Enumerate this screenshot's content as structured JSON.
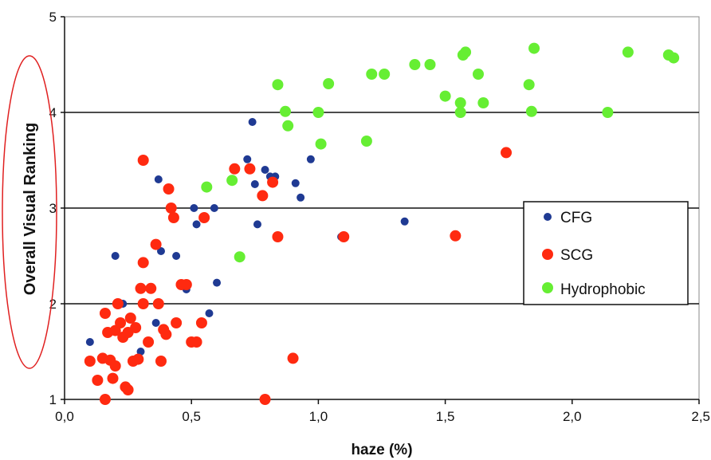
{
  "chart_data": {
    "type": "scatter",
    "title": "",
    "xlabel": "haze (%)",
    "ylabel": "Overall Visual Ranking",
    "xlim": [
      0,
      2.5
    ],
    "ylim": [
      1,
      5
    ],
    "x_ticks": [
      "0,0",
      "0,5",
      "1,0",
      "1,5",
      "2,0",
      "2,5"
    ],
    "y_ticks": [
      "1",
      "2",
      "3",
      "4",
      "5"
    ],
    "grid": "horizontal at 2, 3, 4",
    "legend_position": "right",
    "series": [
      {
        "name": "CFG",
        "color": "#1f3a93",
        "points": [
          [
            0.1,
            1.6
          ],
          [
            0.2,
            2.5
          ],
          [
            0.23,
            2.0
          ],
          [
            0.3,
            1.5
          ],
          [
            0.36,
            1.8
          ],
          [
            0.37,
            3.3
          ],
          [
            0.38,
            2.55
          ],
          [
            0.44,
            2.5
          ],
          [
            0.48,
            2.15
          ],
          [
            0.51,
            3.0
          ],
          [
            0.52,
            2.83
          ],
          [
            0.57,
            1.9
          ],
          [
            0.59,
            3.0
          ],
          [
            0.6,
            2.22
          ],
          [
            0.72,
            3.51
          ],
          [
            0.74,
            3.9
          ],
          [
            0.75,
            3.25
          ],
          [
            0.76,
            2.83
          ],
          [
            0.79,
            3.4
          ],
          [
            0.81,
            3.33
          ],
          [
            0.83,
            3.33
          ],
          [
            0.91,
            3.26
          ],
          [
            0.93,
            3.11
          ],
          [
            0.97,
            3.51
          ],
          [
            1.09,
            2.7
          ],
          [
            1.34,
            2.86
          ]
        ]
      },
      {
        "name": "SCG",
        "color": "#ff2a10",
        "points": [
          [
            0.1,
            1.4
          ],
          [
            0.13,
            1.2
          ],
          [
            0.15,
            1.43
          ],
          [
            0.16,
            1.0
          ],
          [
            0.16,
            1.9
          ],
          [
            0.17,
            1.7
          ],
          [
            0.18,
            1.41
          ],
          [
            0.19,
            1.22
          ],
          [
            0.2,
            1.35
          ],
          [
            0.2,
            1.72
          ],
          [
            0.21,
            2.0
          ],
          [
            0.22,
            1.8
          ],
          [
            0.23,
            1.65
          ],
          [
            0.24,
            1.13
          ],
          [
            0.25,
            1.1
          ],
          [
            0.25,
            1.7
          ],
          [
            0.26,
            1.85
          ],
          [
            0.27,
            1.4
          ],
          [
            0.28,
            1.75
          ],
          [
            0.29,
            1.42
          ],
          [
            0.3,
            2.16
          ],
          [
            0.31,
            2.43
          ],
          [
            0.31,
            3.5
          ],
          [
            0.31,
            2.0
          ],
          [
            0.33,
            1.6
          ],
          [
            0.34,
            2.16
          ],
          [
            0.36,
            2.62
          ],
          [
            0.37,
            2.0
          ],
          [
            0.38,
            1.4
          ],
          [
            0.39,
            1.73
          ],
          [
            0.4,
            1.68
          ],
          [
            0.41,
            3.2
          ],
          [
            0.42,
            3.0
          ],
          [
            0.43,
            2.9
          ],
          [
            0.44,
            1.8
          ],
          [
            0.46,
            2.2
          ],
          [
            0.48,
            2.2
          ],
          [
            0.5,
            1.6
          ],
          [
            0.52,
            1.6
          ],
          [
            0.54,
            1.8
          ],
          [
            0.55,
            2.9
          ],
          [
            0.67,
            3.41
          ],
          [
            0.73,
            3.41
          ],
          [
            0.78,
            3.13
          ],
          [
            0.79,
            1.0
          ],
          [
            0.82,
            3.27
          ],
          [
            0.84,
            2.7
          ],
          [
            0.9,
            1.43
          ],
          [
            1.1,
            2.7
          ],
          [
            1.54,
            2.71
          ],
          [
            1.74,
            3.58
          ]
        ]
      },
      {
        "name": "Hydrophobic",
        "color": "#66ee33",
        "points": [
          [
            0.56,
            3.22
          ],
          [
            0.66,
            3.29
          ],
          [
            0.69,
            2.49
          ],
          [
            0.84,
            4.29
          ],
          [
            0.87,
            4.01
          ],
          [
            0.88,
            3.86
          ],
          [
            1.0,
            4.0
          ],
          [
            1.01,
            3.67
          ],
          [
            1.04,
            4.3
          ],
          [
            1.19,
            3.7
          ],
          [
            1.21,
            4.4
          ],
          [
            1.26,
            4.4
          ],
          [
            1.38,
            4.5
          ],
          [
            1.44,
            4.5
          ],
          [
            1.5,
            4.17
          ],
          [
            1.56,
            4.0
          ],
          [
            1.56,
            4.1
          ],
          [
            1.57,
            4.6
          ],
          [
            1.58,
            4.63
          ],
          [
            1.63,
            4.4
          ],
          [
            1.65,
            4.1
          ],
          [
            1.83,
            4.29
          ],
          [
            1.84,
            4.01
          ],
          [
            1.85,
            4.67
          ],
          [
            2.14,
            4.0
          ],
          [
            2.22,
            4.63
          ],
          [
            2.38,
            4.6
          ],
          [
            2.4,
            4.57
          ]
        ]
      }
    ]
  }
}
